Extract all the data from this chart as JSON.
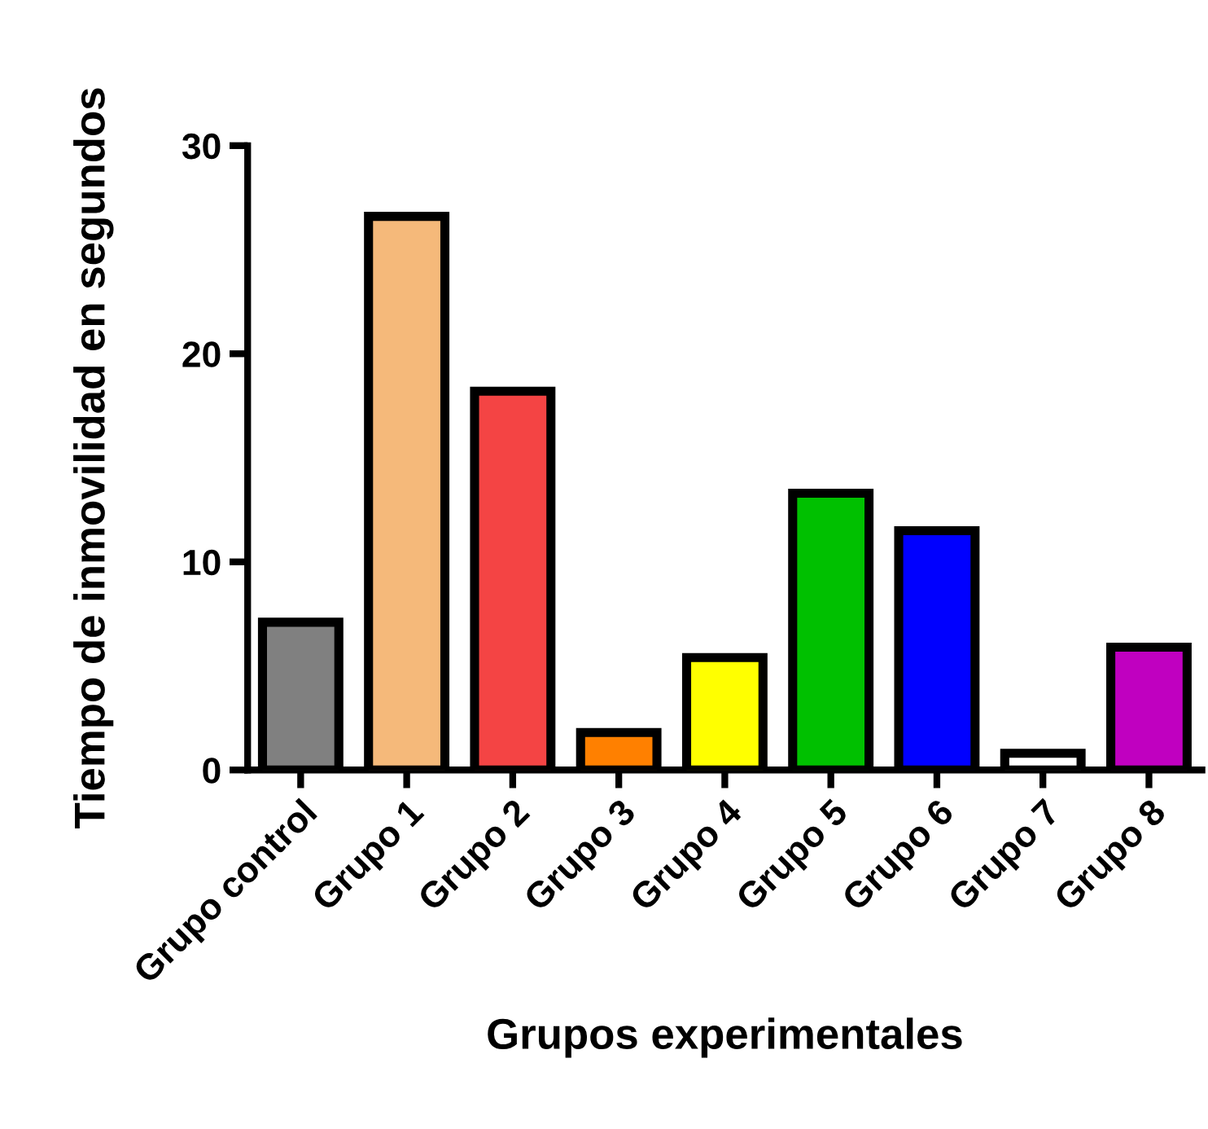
{
  "chart_data": {
    "type": "bar",
    "xlabel": "Grupos experimentales",
    "ylabel": "Tiempo de inmovilidad en segundos",
    "categories": [
      "Grupo control",
      "Grupo 1",
      "Grupo 2",
      "Grupo 3",
      "Grupo 4",
      "Grupo 5",
      "Grupo 6",
      "Grupo 7",
      "Grupo 8"
    ],
    "values": [
      7.1,
      26.6,
      18.2,
      1.8,
      5.4,
      13.3,
      11.5,
      0.8,
      5.9
    ],
    "colors": [
      "#808080",
      "#f5b97a",
      "#f44444",
      "#ff8000",
      "#ffff00",
      "#00c000",
      "#0000ff",
      "#ffffff",
      "#c000c0"
    ],
    "ylim": [
      0,
      30
    ],
    "yticks": [
      0,
      10,
      20,
      30
    ],
    "grid": false,
    "legend": false
  }
}
